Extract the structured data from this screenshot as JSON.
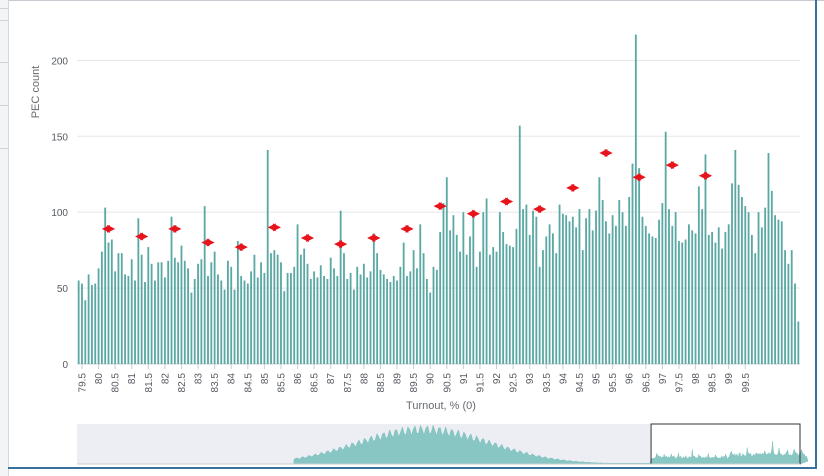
{
  "chart_data": {
    "type": "bar",
    "xlabel": "Turnout, % (0)",
    "ylabel": "PEC count",
    "ylim": [
      0,
      220
    ],
    "yticks": [
      0,
      50,
      100,
      150,
      200
    ],
    "x_start": 79.4,
    "x_step": 0.1,
    "values": [
      55,
      53,
      42,
      59,
      52,
      53,
      63,
      74,
      103,
      80,
      82,
      61,
      73,
      73,
      59,
      58,
      69,
      55,
      96,
      72,
      54,
      77,
      66,
      55,
      67,
      67,
      57,
      68,
      97,
      70,
      67,
      78,
      68,
      63,
      47,
      56,
      66,
      69,
      104,
      58,
      67,
      74,
      59,
      55,
      49,
      68,
      64,
      49,
      81,
      58,
      55,
      53,
      61,
      72,
      57,
      67,
      60,
      141,
      73,
      75,
      72,
      67,
      48,
      60,
      60,
      64,
      92,
      72,
      76,
      66,
      56,
      61,
      57,
      65,
      58,
      56,
      70,
      63,
      58,
      101,
      73,
      56,
      60,
      49,
      64,
      59,
      66,
      57,
      61,
      86,
      73,
      62,
      59,
      56,
      54,
      58,
      55,
      64,
      80,
      58,
      61,
      75,
      63,
      92,
      73,
      56,
      47,
      64,
      62,
      87,
      106,
      123,
      88,
      98,
      85,
      74,
      100,
      72,
      84,
      97,
      64,
      74,
      100,
      109,
      72,
      77,
      74,
      100,
      87,
      79,
      78,
      77,
      89,
      157,
      102,
      105,
      85,
      101,
      97,
      64,
      75,
      84,
      92,
      86,
      73,
      105,
      99,
      98,
      94,
      97,
      90,
      102,
      75,
      96,
      102,
      88,
      101,
      123,
      108,
      94,
      86,
      98,
      91,
      108,
      100,
      91,
      110,
      132,
      217,
      129,
      97,
      91,
      86,
      84,
      83,
      95,
      106,
      153,
      102,
      91,
      100,
      81,
      80,
      82,
      92,
      88,
      86,
      117,
      102,
      138,
      85,
      87,
      80,
      90,
      76,
      87,
      92,
      119,
      141,
      118,
      110,
      104,
      100,
      85,
      73,
      100,
      90,
      103,
      139,
      114,
      98,
      95,
      94,
      75,
      66,
      75,
      53,
      28
    ],
    "xtick_labels": [
      "79.5",
      "80",
      "80.5",
      "81",
      "81.5",
      "82",
      "82.5",
      "83",
      "83.5",
      "84",
      "84.5",
      "85",
      "85.5",
      "86",
      "86.5",
      "87",
      "87.5",
      "88",
      "88.5",
      "89",
      "89.5",
      "90",
      "90.5",
      "91",
      "91.5",
      "92",
      "92.5",
      "93",
      "93.5",
      "94",
      "94.5",
      "95",
      "95.5",
      "96",
      "96.5",
      "97",
      "97.5",
      "98",
      "98.5",
      "99",
      "99.5"
    ],
    "annotations": [
      {
        "type": "double-arrow",
        "x_from": 80.1,
        "x_to": 80.5,
        "y": 89
      },
      {
        "type": "double-arrow",
        "x_from": 81.1,
        "x_to": 81.5,
        "y": 84
      },
      {
        "type": "double-arrow",
        "x_from": 82.1,
        "x_to": 82.5,
        "y": 89
      },
      {
        "type": "double-arrow",
        "x_from": 83.1,
        "x_to": 83.5,
        "y": 80
      },
      {
        "type": "double-arrow",
        "x_from": 84.1,
        "x_to": 84.5,
        "y": 77
      },
      {
        "type": "double-arrow",
        "x_from": 85.1,
        "x_to": 85.5,
        "y": 90
      },
      {
        "type": "double-arrow",
        "x_from": 86.1,
        "x_to": 86.5,
        "y": 83
      },
      {
        "type": "double-arrow",
        "x_from": 87.1,
        "x_to": 87.5,
        "y": 79
      },
      {
        "type": "double-arrow",
        "x_from": 88.1,
        "x_to": 88.5,
        "y": 83
      },
      {
        "type": "double-arrow",
        "x_from": 89.1,
        "x_to": 89.5,
        "y": 89
      },
      {
        "type": "double-arrow",
        "x_from": 90.1,
        "x_to": 90.5,
        "y": 104
      },
      {
        "type": "double-arrow",
        "x_from": 91.1,
        "x_to": 91.5,
        "y": 99
      },
      {
        "type": "double-arrow",
        "x_from": 92.1,
        "x_to": 92.5,
        "y": 107
      },
      {
        "type": "double-arrow",
        "x_from": 93.1,
        "x_to": 93.5,
        "y": 102
      },
      {
        "type": "double-arrow",
        "x_from": 94.1,
        "x_to": 94.5,
        "y": 116
      },
      {
        "type": "double-arrow",
        "x_from": 95.1,
        "x_to": 95.5,
        "y": 139
      },
      {
        "type": "double-arrow",
        "x_from": 96.1,
        "x_to": 96.5,
        "y": 123
      },
      {
        "type": "double-arrow",
        "x_from": 97.1,
        "x_to": 97.5,
        "y": 131
      },
      {
        "type": "double-arrow",
        "x_from": 98.1,
        "x_to": 98.5,
        "y": 124
      }
    ],
    "grid": true,
    "navigator": {
      "full_range": [
        0,
        100
      ],
      "selected_range": [
        79.4,
        100
      ]
    },
    "colors": {
      "bar": "#5aa8a3",
      "arrow": "#e8141c",
      "grid": "#e6e6e6",
      "axis": "#c7d0d6",
      "navigator_bg": "#eceef4",
      "navigator_series": "#7cc1bd"
    }
  }
}
